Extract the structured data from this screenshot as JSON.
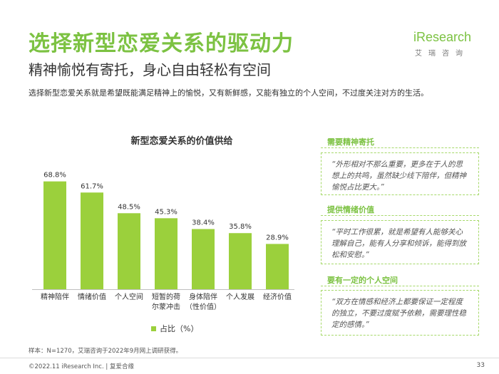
{
  "header": {
    "title": "选择新型恋爱关系的驱动力",
    "subtitle": "精神愉悦有寄托，身心自由轻松有空间",
    "description": "选择新型恋爱关系就是希望既能满足精神上的愉悦，又有新鲜感，又能有独立的个人空间，不过度关注对方的生活。"
  },
  "logo": {
    "main": "iResearch",
    "sub": "艾瑞咨询"
  },
  "chart_data": {
    "type": "bar",
    "title": "新型恋爱关系的价值供给",
    "categories": [
      [
        "精神陪伴"
      ],
      [
        "情绪价值"
      ],
      [
        "个人空间"
      ],
      [
        "短暂的荷",
        "尔蒙冲击"
      ],
      [
        "身体陪伴",
        "（性价值）"
      ],
      [
        "个人发展"
      ],
      [
        "经济价值"
      ]
    ],
    "series": [
      {
        "name": "占比（%）",
        "values": [
          68.8,
          61.7,
          48.5,
          45.3,
          38.4,
          35.8,
          28.9
        ],
        "labels": [
          "68.8%",
          "61.7%",
          "48.5%",
          "45.3%",
          "38.4%",
          "35.8%",
          "28.9%"
        ]
      }
    ],
    "ylim": [
      0,
      80
    ],
    "grid": false,
    "legend_position": "bottom",
    "colors": {
      "bar": "#9bd03c",
      "axis": "#bfbfbf"
    }
  },
  "side_panel": [
    {
      "heading": "需要精神寄托",
      "quote": "“外形相对不那么重要，更多在于人的思想上的共鸣，虽然缺少线下陪伴，但精神愉悦占比更大。”"
    },
    {
      "heading": "提供情绪价值",
      "quote": "“平时工作很累，就是希望有人能够关心理解自己，能有人分享和倾诉，能得到放松和安慰。”"
    },
    {
      "heading": "要有一定的个人空间",
      "quote": "“双方在情感和经济上都要保证一定程度的独立，不要过度赋予依赖，需要理性稳定的感情。”"
    }
  ],
  "footnote": "样本：N=1270，艾瑞咨询于2022年9月网上调研获得。",
  "footer": {
    "text": "©2022.11 iResearch Inc. | 复爱合缘",
    "page": "33"
  },
  "colors": {
    "accent": "#7cc242",
    "bar": "#9bd03c",
    "dashed_border": "#a6d96a"
  }
}
